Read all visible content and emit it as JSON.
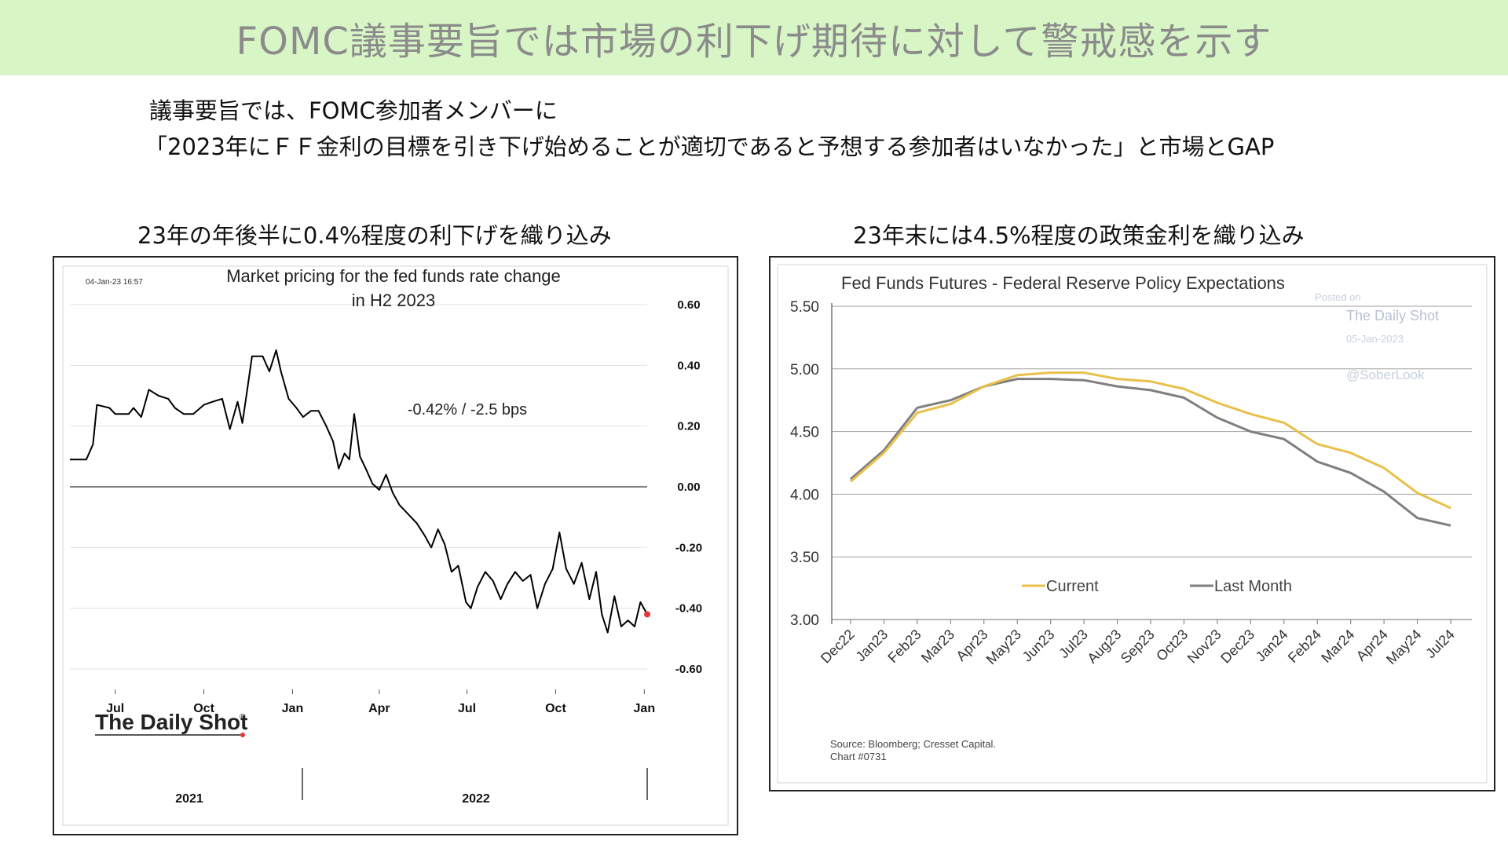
{
  "banner": {
    "title": "FOMC議事要旨では市場の利下げ期待に対して警戒感を示す"
  },
  "intro": {
    "line1": "議事要旨では、FOMC参加者メンバーに",
    "line2": "「2023年にＦＦ金利の目標を引き下げ始めることが適切であると予想する参加者はいなかった」と市場とGAP"
  },
  "left_panel": {
    "caption": "23年の年後半に0.4%程度の利下げを織り込み",
    "timestamp": "04-Jan-23 16:57",
    "annotation": "-0.42%  /  -2.5 bps",
    "logo_text": "The Daily Shot",
    "logo_mark": "®",
    "year_labels": [
      "2021",
      "2022"
    ]
  },
  "right_panel": {
    "caption": "23年末には4.5%程度の政策金利を織り込み",
    "watermark": {
      "line1": "Posted on",
      "line2": "The Daily Shot",
      "line3": "05-Jan-2023",
      "line4": "@SoberLook"
    },
    "source": "Source: Bloomberg; Cresset Capital.",
    "chart_no": "Chart #0731"
  },
  "colors": {
    "banner_bg": "#d8f5c6",
    "current": "#e8c04a",
    "last_month": "#7f7f7f",
    "marker": "#e53935"
  },
  "chart_data": [
    {
      "type": "line",
      "title": "Market pricing for the fed funds rate change in H2 2023",
      "title_lines": [
        "Market pricing for the fed funds rate change",
        "in H2 2023"
      ],
      "x_ticks": [
        "Jul",
        "Oct",
        "Jan",
        "Apr",
        "Jul",
        "Oct",
        "Jan"
      ],
      "y_ticks": [
        "0.60",
        "0.40",
        "0.20",
        "0.00",
        "-0.20",
        "-0.40",
        "-0.60"
      ],
      "ylim": [
        -0.6,
        0.6
      ],
      "x_range": [
        "2021-05-15",
        "2023-01-04"
      ],
      "series": [
        {
          "values": [
            [
              "2021-05-15",
              0.09
            ],
            [
              "2021-06-01",
              0.09
            ],
            [
              "2021-06-08",
              0.14
            ],
            [
              "2021-06-12",
              0.27
            ],
            [
              "2021-06-25",
              0.26
            ],
            [
              "2021-07-01",
              0.24
            ],
            [
              "2021-07-15",
              0.24
            ],
            [
              "2021-07-20",
              0.26
            ],
            [
              "2021-07-28",
              0.23
            ],
            [
              "2021-08-05",
              0.32
            ],
            [
              "2021-08-15",
              0.3
            ],
            [
              "2021-08-25",
              0.29
            ],
            [
              "2021-09-01",
              0.26
            ],
            [
              "2021-09-10",
              0.24
            ],
            [
              "2021-09-20",
              0.24
            ],
            [
              "2021-10-01",
              0.27
            ],
            [
              "2021-10-10",
              0.28
            ],
            [
              "2021-10-20",
              0.29
            ],
            [
              "2021-10-28",
              0.19
            ],
            [
              "2021-11-05",
              0.28
            ],
            [
              "2021-11-10",
              0.21
            ],
            [
              "2021-11-15",
              0.32
            ],
            [
              "2021-11-20",
              0.43
            ],
            [
              "2021-12-01",
              0.43
            ],
            [
              "2021-12-08",
              0.38
            ],
            [
              "2021-12-15",
              0.45
            ],
            [
              "2021-12-20",
              0.38
            ],
            [
              "2021-12-28",
              0.29
            ],
            [
              "2022-01-05",
              0.26
            ],
            [
              "2022-01-12",
              0.23
            ],
            [
              "2022-01-20",
              0.25
            ],
            [
              "2022-01-28",
              0.25
            ],
            [
              "2022-02-05",
              0.2
            ],
            [
              "2022-02-12",
              0.15
            ],
            [
              "2022-02-18",
              0.06
            ],
            [
              "2022-02-24",
              0.11
            ],
            [
              "2022-03-01",
              0.09
            ],
            [
              "2022-03-06",
              0.24
            ],
            [
              "2022-03-12",
              0.1
            ],
            [
              "2022-03-18",
              0.06
            ],
            [
              "2022-03-25",
              0.01
            ],
            [
              "2022-04-01",
              -0.01
            ],
            [
              "2022-04-08",
              0.04
            ],
            [
              "2022-04-15",
              -0.02
            ],
            [
              "2022-04-22",
              -0.06
            ],
            [
              "2022-05-01",
              -0.09
            ],
            [
              "2022-05-10",
              -0.12
            ],
            [
              "2022-05-18",
              -0.16
            ],
            [
              "2022-05-25",
              -0.2
            ],
            [
              "2022-06-01",
              -0.14
            ],
            [
              "2022-06-08",
              -0.19
            ],
            [
              "2022-06-15",
              -0.28
            ],
            [
              "2022-06-22",
              -0.26
            ],
            [
              "2022-06-30",
              -0.38
            ],
            [
              "2022-07-05",
              -0.4
            ],
            [
              "2022-07-12",
              -0.33
            ],
            [
              "2022-07-20",
              -0.28
            ],
            [
              "2022-07-28",
              -0.31
            ],
            [
              "2022-08-05",
              -0.37
            ],
            [
              "2022-08-12",
              -0.32
            ],
            [
              "2022-08-20",
              -0.28
            ],
            [
              "2022-08-28",
              -0.31
            ],
            [
              "2022-09-05",
              -0.29
            ],
            [
              "2022-09-12",
              -0.4
            ],
            [
              "2022-09-20",
              -0.32
            ],
            [
              "2022-09-28",
              -0.27
            ],
            [
              "2022-10-05",
              -0.15
            ],
            [
              "2022-10-12",
              -0.27
            ],
            [
              "2022-10-20",
              -0.32
            ],
            [
              "2022-10-28",
              -0.25
            ],
            [
              "2022-11-05",
              -0.37
            ],
            [
              "2022-11-12",
              -0.28
            ],
            [
              "2022-11-18",
              -0.42
            ],
            [
              "2022-11-24",
              -0.48
            ],
            [
              "2022-12-01",
              -0.36
            ],
            [
              "2022-12-08",
              -0.46
            ],
            [
              "2022-12-15",
              -0.44
            ],
            [
              "2022-12-22",
              -0.46
            ],
            [
              "2022-12-28",
              -0.38
            ],
            [
              "2023-01-04",
              -0.42
            ]
          ]
        }
      ],
      "last_point": [
        "2023-01-04",
        -0.42
      ],
      "grid": true
    },
    {
      "type": "line",
      "title": "Fed Funds Futures - Federal Reserve Policy Expectations",
      "categories": [
        "Dec22",
        "Jan23",
        "Feb23",
        "Mar23",
        "Apr23",
        "May23",
        "Jun23",
        "Jul23",
        "Aug23",
        "Sep23",
        "Oct23",
        "Nov23",
        "Dec23",
        "Jan24",
        "Feb24",
        "Mar24",
        "Apr24",
        "May24",
        "Jul24"
      ],
      "y_ticks": [
        "5.50",
        "5.00",
        "4.50",
        "4.00",
        "3.50",
        "3.00"
      ],
      "ylim": [
        3.0,
        5.5
      ],
      "series": [
        {
          "name": "Current",
          "values": [
            4.1,
            4.33,
            4.65,
            4.72,
            4.86,
            4.95,
            4.97,
            4.97,
            4.92,
            4.9,
            4.84,
            4.73,
            4.64,
            4.57,
            4.4,
            4.33,
            4.21,
            4.01,
            3.89
          ]
        },
        {
          "name": "Last Month",
          "values": [
            4.12,
            4.35,
            4.69,
            4.75,
            4.86,
            4.92,
            4.92,
            4.91,
            4.86,
            4.83,
            4.77,
            4.61,
            4.5,
            4.44,
            4.26,
            4.17,
            4.02,
            3.81,
            3.75
          ]
        }
      ],
      "legend": "bottom-center",
      "grid": true
    }
  ]
}
